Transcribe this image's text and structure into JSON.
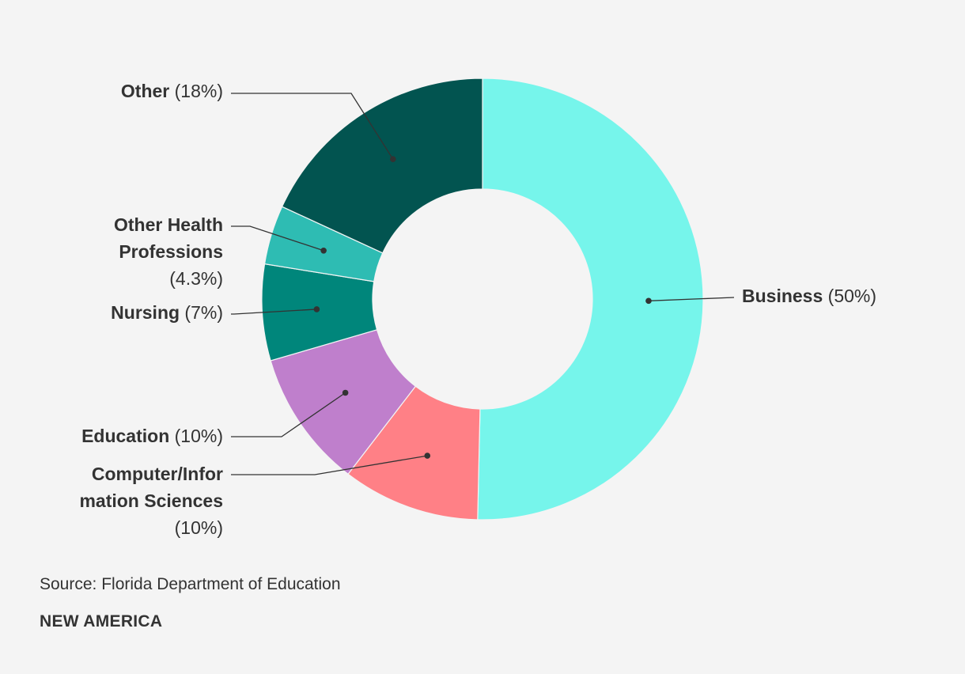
{
  "chart_data": {
    "type": "pie",
    "title": "",
    "slices": [
      {
        "name": "Business",
        "pct_label": "(50%)",
        "value": 50,
        "color": "#76f5eb"
      },
      {
        "name": "Computer/Information Sciences",
        "pct_label": "(10%)",
        "value": 10,
        "color": "#ff8086"
      },
      {
        "name": "Education",
        "pct_label": "(10%)",
        "value": 10,
        "color": "#bf7fcc"
      },
      {
        "name": "Nursing",
        "pct_label": "(7%)",
        "value": 7,
        "color": "#00867b"
      },
      {
        "name": "Other Health Professions",
        "pct_label": "(4.3%)",
        "value": 4.3,
        "color": "#2ebcb3"
      },
      {
        "name": "Other",
        "pct_label": "(18%)",
        "value": 18,
        "color": "#025450"
      }
    ]
  },
  "footer": {
    "source": "Source: Florida Department of Education",
    "brand": "NEW AMERICA"
  }
}
